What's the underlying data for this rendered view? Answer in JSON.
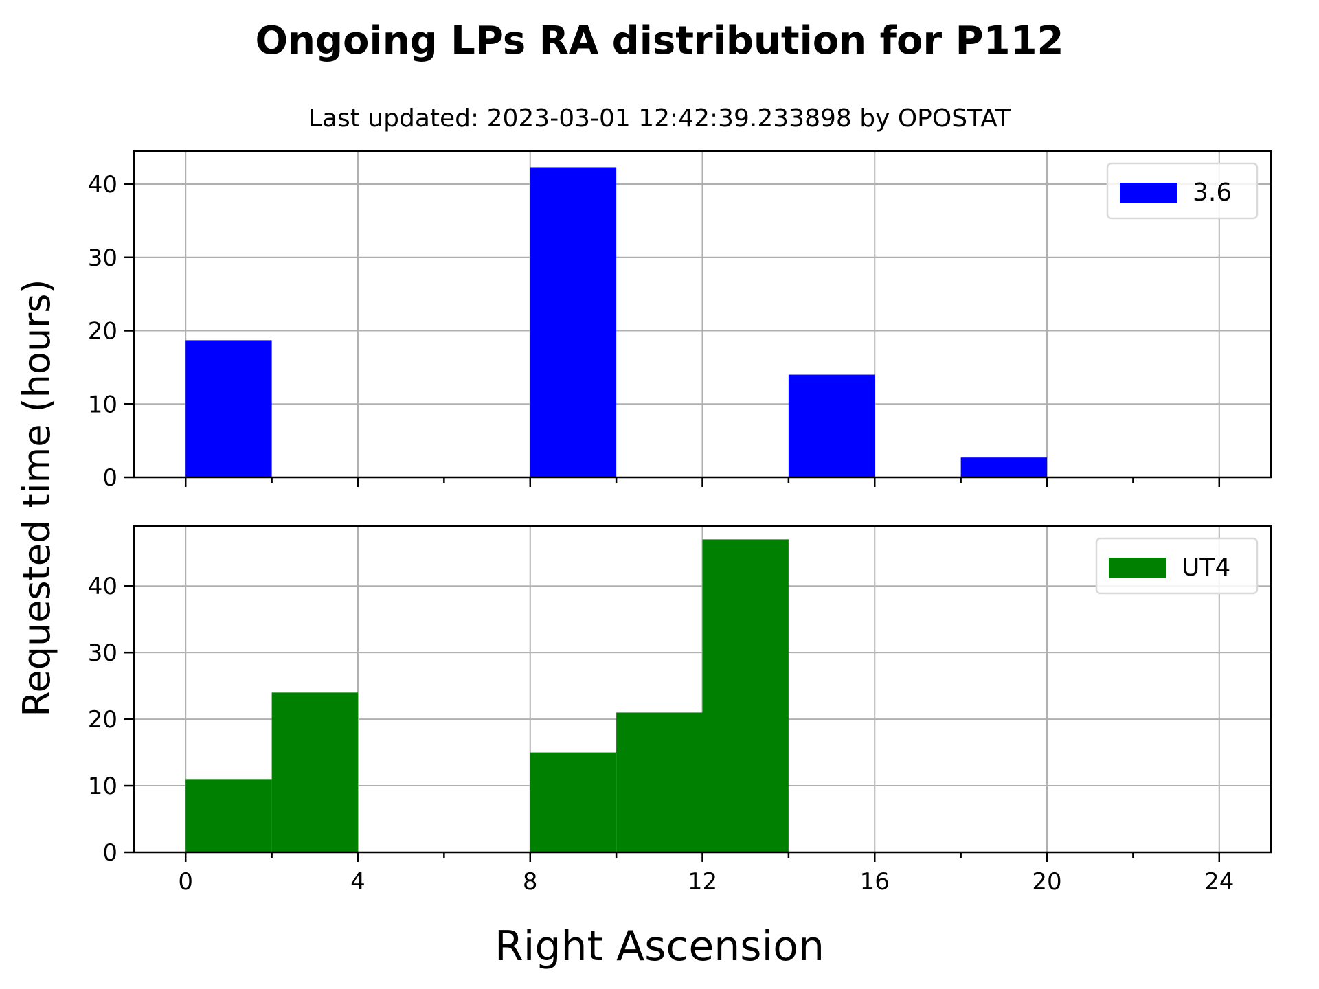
{
  "figure": {
    "title": "Ongoing LPs RA distribution for P112",
    "subtitle": "Last updated: 2023-03-01 12:42:39.233898 by OPOSTAT",
    "ylabel": "Requested time (hours)",
    "xlabel": "Right Ascension"
  },
  "chart_data": [
    {
      "type": "bar",
      "series_name": "3.6",
      "color": "#0000ff",
      "bin_width": 2,
      "bins": [
        0,
        2,
        4,
        6,
        8,
        10,
        12,
        14,
        16,
        18,
        20,
        22
      ],
      "values": [
        18.7,
        0,
        0,
        0,
        42.3,
        0,
        0,
        14.0,
        0,
        2.7,
        0,
        0
      ],
      "xlim": [
        -1.2,
        25.2
      ],
      "ylim": [
        0,
        44.5
      ],
      "xticks": [
        0,
        4,
        8,
        12,
        16,
        20,
        24
      ],
      "yticks": [
        0,
        10,
        20,
        30,
        40
      ],
      "grid": true,
      "legend": "top-right"
    },
    {
      "type": "bar",
      "series_name": "UT4",
      "color": "#008000",
      "bin_width": 2,
      "bins": [
        0,
        2,
        4,
        6,
        8,
        10,
        12,
        14,
        16,
        18,
        20,
        22
      ],
      "values": [
        11,
        24,
        0,
        0,
        15,
        21,
        47,
        0,
        0,
        0,
        0,
        0
      ],
      "xlim": [
        -1.2,
        25.2
      ],
      "ylim": [
        0,
        49
      ],
      "xticks": [
        0,
        4,
        8,
        12,
        16,
        20,
        24
      ],
      "yticks": [
        0,
        10,
        20,
        30,
        40
      ],
      "grid": true,
      "legend": "top-right"
    }
  ]
}
